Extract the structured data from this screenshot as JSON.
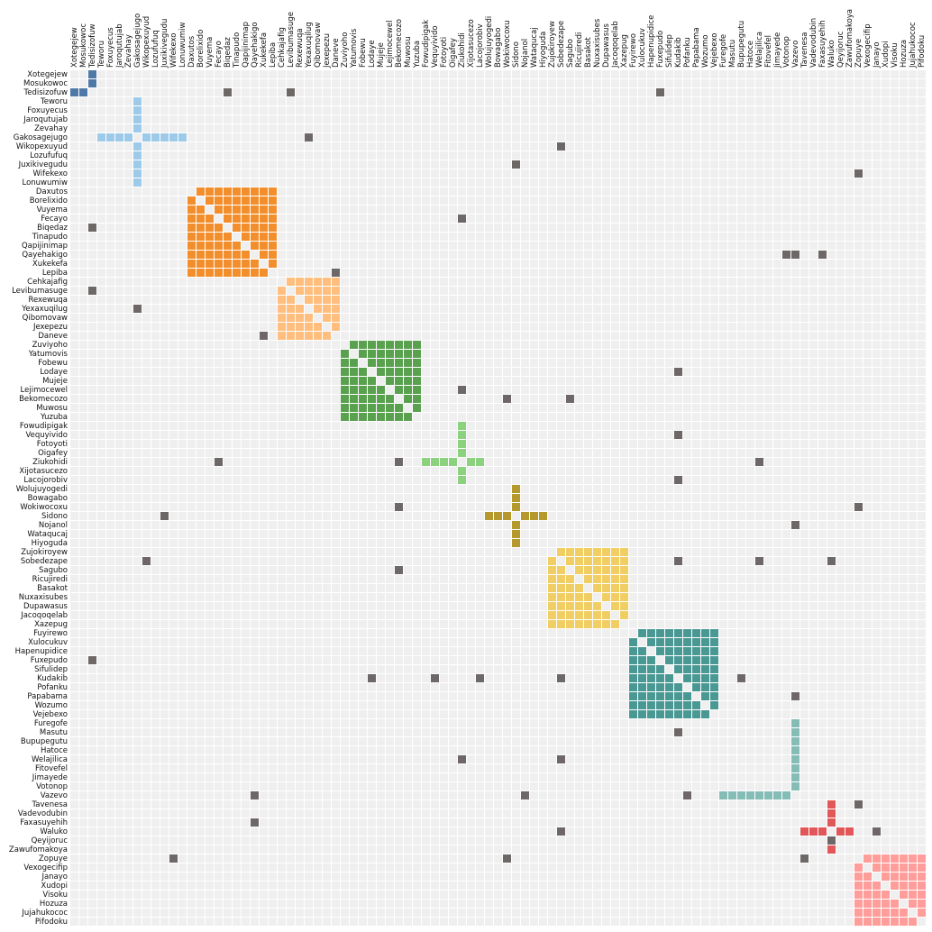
{
  "chart_data": {
    "type": "heatmap",
    "nodes": [
      "Xotegejew",
      "Mosukowoc",
      "Tedisizofuw",
      "Teworu",
      "Foxuyecus",
      "Jaroqutujab",
      "Zevahay",
      "Gakosagejugo",
      "Wikopexuyud",
      "Lozufufuq",
      "Juxikivegudu",
      "Wifekexo",
      "Lonuwumiw",
      "Daxutos",
      "Borelixido",
      "Vuyema",
      "Fecayo",
      "Biqedaz",
      "Tinapudo",
      "Qapijinimap",
      "Qayehakigo",
      "Xukekefa",
      "Lepiba",
      "Cehkajafig",
      "Levibumasuge",
      "Rexewuqa",
      "Yexaxuqilug",
      "Qibomovaw",
      "Jexepezu",
      "Daneve",
      "Zuviyoho",
      "Yatumovis",
      "Fobewu",
      "Lodaye",
      "Mujeje",
      "Lejimocewel",
      "Bekomecozo",
      "Muwosu",
      "Yuzuba",
      "Fowudipigak",
      "Vequyivido",
      "Fotoyoti",
      "Oigafey",
      "Ziukohidi",
      "Xijotasucezo",
      "Lacojorobiv",
      "Wolujuyogedi",
      "Bowagabo",
      "Wokiwocoxu",
      "Sidono",
      "Nojanol",
      "Wataqucaj",
      "Hiyoguda",
      "Zujokiroyew",
      "Sobedezape",
      "Sagubo",
      "Ricujiredi",
      "Basakot",
      "Nuxaxisubes",
      "Dupawasus",
      "Jacoqoqelab",
      "Xazepug",
      "Fuyirewo",
      "Xulocukuv",
      "Hapenupidice",
      "Fuxepudo",
      "Sifulidep",
      "Kudakib",
      "Pofanku",
      "Papabama",
      "Wozumo",
      "Vejebexo",
      "Furegofe",
      "Masutu",
      "Bupupegutu",
      "Hatoce",
      "Welajilica",
      "Fitovefel",
      "Jimayede",
      "Votonop",
      "Vazevo",
      "Tavenesa",
      "Vadevodubin",
      "Faxasuyehih",
      "Waluko",
      "Qeyijoruc",
      "Zawufomakoya",
      "Zopuye",
      "Vexogecifip",
      "Janayo",
      "Xudopi",
      "Visoku",
      "Hozuza",
      "Jujahukococ",
      "Pifodoku"
    ],
    "groups": [
      {
        "start": 0,
        "end": 2,
        "pattern": "star",
        "center": 2,
        "color": "#4e79a7"
      },
      {
        "start": 3,
        "end": 12,
        "pattern": "star",
        "center": 7,
        "color": "#9ecae9"
      },
      {
        "start": 13,
        "end": 22,
        "pattern": "full",
        "color": "#f28e2b"
      },
      {
        "start": 23,
        "end": 29,
        "pattern": "full",
        "color": "#ffbe7d"
      },
      {
        "start": 30,
        "end": 38,
        "pattern": "full",
        "color": "#59a14f"
      },
      {
        "start": 39,
        "end": 45,
        "pattern": "star",
        "center": 43,
        "color": "#8cd17d"
      },
      {
        "start": 46,
        "end": 52,
        "pattern": "star",
        "center": 49,
        "color": "#b6992d"
      },
      {
        "start": 53,
        "end": 61,
        "pattern": "full",
        "color": "#f1ce63"
      },
      {
        "start": 62,
        "end": 71,
        "pattern": "full",
        "color": "#499894"
      },
      {
        "start": 72,
        "end": 80,
        "pattern": "star",
        "center": 80,
        "color": "#86bcb6"
      },
      {
        "start": 81,
        "end": 86,
        "pattern": "star",
        "center": 84,
        "color": "#e15759"
      },
      {
        "start": 87,
        "end": 94,
        "pattern": "full",
        "color": "#ff9d9a"
      }
    ],
    "cross_links": [
      [
        2,
        17
      ],
      [
        2,
        24
      ],
      [
        2,
        65
      ],
      [
        7,
        26
      ],
      [
        8,
        54
      ],
      [
        10,
        49
      ],
      [
        11,
        87
      ],
      [
        17,
        2
      ],
      [
        16,
        43
      ],
      [
        20,
        79
      ],
      [
        20,
        80
      ],
      [
        20,
        83
      ],
      [
        22,
        29
      ],
      [
        24,
        2
      ],
      [
        26,
        7
      ],
      [
        29,
        21
      ],
      [
        33,
        67
      ],
      [
        35,
        43
      ],
      [
        36,
        48
      ],
      [
        36,
        55
      ],
      [
        40,
        67
      ],
      [
        43,
        16
      ],
      [
        43,
        36
      ],
      [
        43,
        76
      ],
      [
        45,
        67
      ],
      [
        48,
        36
      ],
      [
        48,
        87
      ],
      [
        49,
        10
      ],
      [
        50,
        80
      ],
      [
        54,
        8
      ],
      [
        54,
        67
      ],
      [
        54,
        76
      ],
      [
        54,
        84
      ],
      [
        55,
        36
      ],
      [
        65,
        2
      ],
      [
        67,
        33
      ],
      [
        67,
        40
      ],
      [
        67,
        45
      ],
      [
        67,
        54
      ],
      [
        67,
        74
      ],
      [
        69,
        80
      ],
      [
        73,
        67
      ],
      [
        76,
        43
      ],
      [
        76,
        54
      ],
      [
        80,
        20
      ],
      [
        80,
        50
      ],
      [
        80,
        68
      ],
      [
        81,
        87
      ],
      [
        83,
        20
      ],
      [
        84,
        54
      ],
      [
        84,
        89
      ],
      [
        85,
        84
      ],
      [
        87,
        11
      ],
      [
        87,
        48
      ],
      [
        87,
        81
      ]
    ],
    "link_color": "#6e6767",
    "empty_cell_color": "#efefef"
  }
}
